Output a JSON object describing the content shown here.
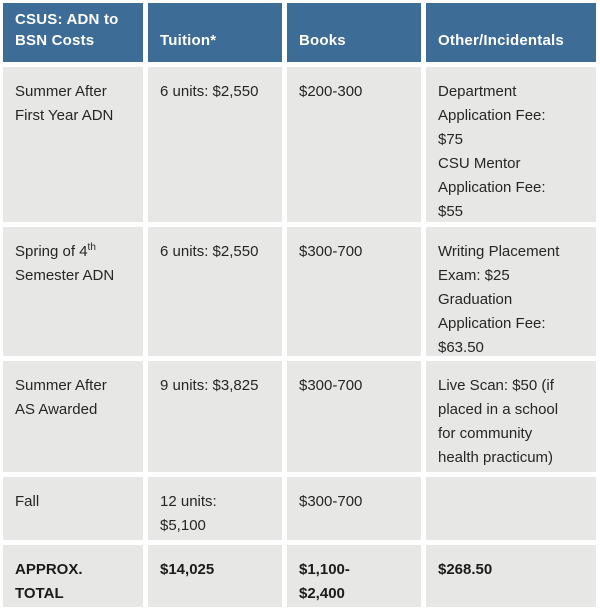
{
  "table": {
    "title": "CSUS: ADN to BSN Costs",
    "colors": {
      "header_bg": "#3d6d97",
      "header_text": "#ffffff",
      "cell_bg": "#e7e7e6",
      "body_text": "#262626"
    },
    "header": {
      "costs_line1": "CSUS: ADN to",
      "costs_line2": "BSN Costs",
      "tuition": "Tuition*",
      "books": "Books",
      "other": "Other/Incidentals"
    },
    "rows": [
      {
        "period": [
          "Summer After",
          "First Year ADN"
        ],
        "tuition": [
          "6 units: $2,550"
        ],
        "books": [
          "$200-300"
        ],
        "other": [
          "Department",
          "Application Fee:",
          "$75",
          "CSU Mentor",
          "Application Fee:",
          "$55"
        ]
      },
      {
        "period_pre": "Spring of 4",
        "period_sup": "th",
        "period_line2": "Semester ADN",
        "tuition": [
          "6 units: $2,550"
        ],
        "books": [
          "$300-700"
        ],
        "other": [
          "Writing Placement",
          "Exam: $25",
          "Graduation",
          "Application Fee:",
          "$63.50"
        ]
      },
      {
        "period": [
          "Summer After",
          "AS Awarded"
        ],
        "tuition": [
          "9 units: $3,825"
        ],
        "books": [
          "$300-700"
        ],
        "other": [
          "Live Scan: $50 (if",
          "placed in a school",
          "for community",
          "health practicum)"
        ]
      },
      {
        "period": [
          "Fall"
        ],
        "tuition": [
          "12 units:",
          "$5,100"
        ],
        "books": [
          "$300-700"
        ],
        "other": []
      },
      {
        "period": [
          "APPROX.",
          "TOTAL"
        ],
        "tuition": [
          "$14,025"
        ],
        "books": [
          "$1,100-",
          "$2,400"
        ],
        "other": [
          "$268.50"
        ]
      }
    ]
  }
}
